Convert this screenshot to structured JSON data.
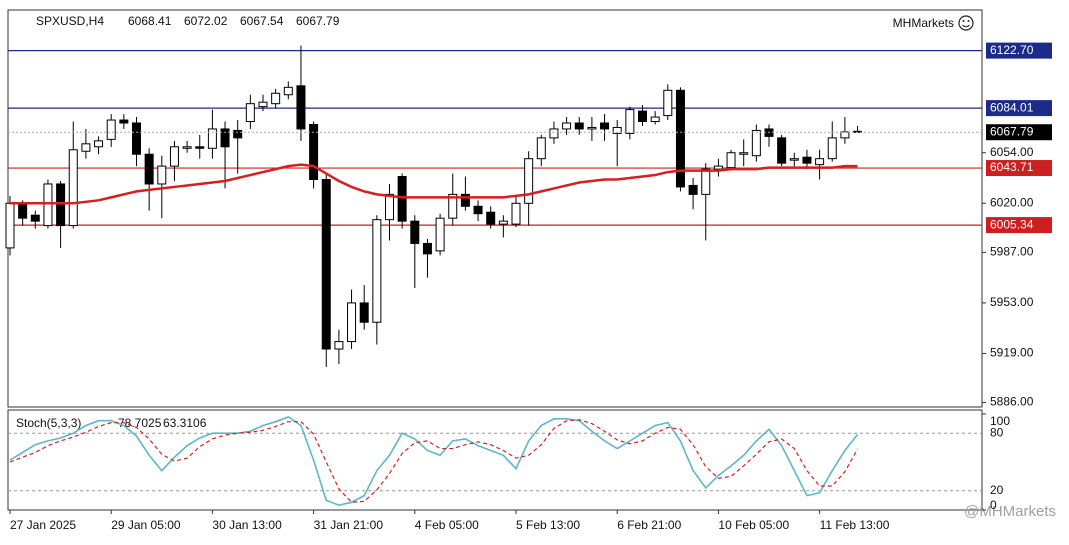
{
  "chart_data": [
    {
      "type": "candlestick",
      "title": "SPXUSD,H4",
      "brand": "MHMarkets",
      "watermark": "@MHMarkets",
      "categories": [
        "27 Jan 2025",
        null,
        null,
        null,
        null,
        null,
        null,
        null,
        "29 Jan 05:00",
        null,
        null,
        null,
        null,
        null,
        null,
        null,
        "30 Jan 13:00",
        null,
        null,
        null,
        null,
        null,
        null,
        null,
        "31 Jan 21:00",
        null,
        null,
        null,
        null,
        null,
        null,
        null,
        "4 Feb 05:00",
        null,
        null,
        null,
        null,
        null,
        null,
        null,
        "5 Feb 13:00",
        null,
        null,
        null,
        null,
        null,
        null,
        null,
        "6 Feb 21:00",
        null,
        null,
        null,
        null,
        null,
        null,
        null,
        "10 Feb 05:00",
        null,
        null,
        null,
        null,
        null,
        null,
        null,
        "11 Feb 13:00",
        null,
        null,
        null
      ],
      "open": [
        5990,
        6020,
        6012,
        6005,
        6033,
        6005,
        6055,
        6058,
        6063,
        6076,
        6074,
        6053,
        6033,
        6045,
        6057,
        6058,
        6057,
        6070,
        6069,
        6075,
        6085,
        6087,
        6093,
        6099,
        6073,
        6036,
        5922,
        5927,
        5953,
        5940,
        6009,
        6038,
        6008,
        5993,
        5988,
        6010,
        6026,
        6018,
        6014,
        6006,
        6006,
        6020,
        6050,
        6064,
        6070,
        6074,
        6070,
        6074,
        6067,
        6067,
        6082,
        6075,
        6079,
        6096,
        6032,
        6026,
        6043,
        6044,
        6053,
        6052,
        6070,
        6064,
        6049,
        6051,
        6046,
        6050,
        6064,
        6068.41
      ],
      "high": [
        6025,
        6022,
        6015,
        6036,
        6035,
        6075,
        6070,
        6065,
        6080,
        6080,
        6078,
        6057,
        6052,
        6062,
        6062,
        6066,
        6083,
        6075,
        6076,
        6093,
        6093,
        6097,
        6102,
        6126,
        6075,
        6040,
        5935,
        5962,
        5965,
        6012,
        6033,
        6040,
        6012,
        5996,
        6013,
        6040,
        6038,
        6022,
        6018,
        6012,
        6025,
        6055,
        6066,
        6075,
        6078,
        6078,
        6078,
        6080,
        6076,
        6085,
        6086,
        6082,
        6100,
        6098,
        6037,
        6047,
        6050,
        6056,
        6063,
        6073,
        6073,
        6066,
        6054,
        6056,
        6056,
        6075,
        6078,
        6072.02
      ],
      "low": [
        5985,
        6005,
        6003,
        6003,
        5990,
        6003,
        6050,
        6053,
        6058,
        6070,
        6045,
        6015,
        6010,
        6035,
        6054,
        6050,
        6050,
        6030,
        6040,
        6070,
        6082,
        6084,
        6090,
        6062,
        6030,
        5910,
        5912,
        5922,
        5935,
        5925,
        5995,
        6003,
        5963,
        5970,
        5985,
        6005,
        6015,
        6008,
        6003,
        5997,
        6004,
        6005,
        6045,
        6060,
        6066,
        6066,
        6062,
        6062,
        6045,
        6063,
        6072,
        6073,
        6076,
        6028,
        6016,
        5995,
        6038,
        6042,
        6045,
        6048,
        6058,
        6045,
        6044,
        6043,
        6036,
        6048,
        6060,
        6067.54
      ],
      "close": [
        6020,
        6010,
        6008,
        6033,
        6005,
        6056,
        6060,
        6062,
        6076,
        6074,
        6053,
        6033,
        6045,
        6058,
        6058,
        6057,
        6070,
        6058,
        6064,
        6087,
        6088,
        6094,
        6098,
        6070,
        6036,
        5922,
        5927,
        5953,
        5940,
        6009,
        6026,
        6008,
        5993,
        5986,
        6010,
        6026,
        6018,
        6013,
        6006,
        6008,
        6020,
        6050,
        6064,
        6070,
        6074,
        6070,
        6071,
        6070,
        6071,
        6083,
        6075,
        6078,
        6096,
        6031,
        6026,
        6043,
        6045,
        6054,
        6054,
        6069,
        6065,
        6047,
        6050,
        6047,
        6050,
        6064,
        6068,
        6067.79
      ],
      "up_color": "#ffffff",
      "down_color": "#000000",
      "ma": {
        "color": "#d42020",
        "values": [
          6020,
          6020,
          6020,
          6020,
          6020,
          6020,
          6021,
          6022,
          6024,
          6026,
          6028,
          6029,
          6030,
          6031,
          6032,
          6033,
          6034,
          6035,
          6037,
          6039,
          6041,
          6043,
          6045,
          6046,
          6045,
          6040,
          6035,
          6031,
          6028,
          6026,
          6025,
          6024,
          6024,
          6024,
          6024,
          6024,
          6024,
          6024,
          6024,
          6024,
          6025,
          6026,
          6028,
          6030,
          6032,
          6034,
          6035,
          6036,
          6036,
          6037,
          6038,
          6039,
          6041,
          6042,
          6042,
          6042,
          6042,
          6043,
          6043,
          6043,
          6044,
          6044,
          6044,
          6044,
          6044,
          6044,
          6045,
          6045
        ]
      },
      "ylim": [
        5883,
        6150
      ],
      "yticks": [
        {
          "value": 6054,
          "label": "6054.00"
        },
        {
          "value": 6020,
          "label": "6020.00"
        },
        {
          "value": 5987,
          "label": "5987.00"
        },
        {
          "value": 5953,
          "label": "5953.00"
        },
        {
          "value": 5919,
          "label": "5919.00"
        },
        {
          "value": 5886,
          "label": "5886.00"
        }
      ],
      "levels": [
        {
          "value": 6122.7,
          "label": "6122.70",
          "color": "#1c2a8c"
        },
        {
          "value": 6084.01,
          "color": "#1c2a8c"
        },
        {
          "value": 6043.71,
          "color": "#cc1f1f"
        },
        {
          "value": 6005.34,
          "color": "#cc1f1f"
        }
      ]
    },
    {
      "type": "line",
      "title": "Stoch(5,3,3)",
      "series": [
        {
          "color": "#5bb8c4",
          "values": [
            52,
            60,
            68,
            72,
            75,
            80,
            88,
            93,
            93,
            88,
            77,
            57,
            41,
            55,
            67,
            75,
            80,
            80,
            80,
            82,
            88,
            92,
            97,
            88,
            52,
            10,
            5,
            8,
            15,
            41,
            57,
            80,
            74,
            62,
            57,
            72,
            74,
            67,
            62,
            57,
            43,
            72,
            88,
            95,
            95,
            93,
            82,
            72,
            64,
            72,
            80,
            88,
            91,
            72,
            41,
            23,
            36,
            46,
            57,
            72,
            84,
            67,
            41,
            15,
            18,
            41,
            62,
            78.7025
          ]
        },
        {
          "color": "#d42020",
          "dashed": true,
          "values": [
            50,
            55,
            60,
            67,
            72,
            76,
            81,
            87,
            91,
            91,
            86,
            74,
            58,
            51,
            54,
            66,
            74,
            78,
            80,
            81,
            83,
            87,
            92,
            92,
            79,
            50,
            22,
            8,
            9,
            21,
            38,
            59,
            70,
            72,
            64,
            64,
            68,
            71,
            68,
            62,
            54,
            57,
            68,
            85,
            93,
            94,
            90,
            82,
            73,
            69,
            72,
            80,
            86,
            84,
            68,
            45,
            33,
            35,
            46,
            58,
            71,
            74,
            64,
            41,
            25,
            25,
            40,
            63.3106
          ]
        }
      ],
      "ylim": [
        0,
        100
      ],
      "yticks": [
        100,
        80,
        20,
        0
      ]
    }
  ]
}
